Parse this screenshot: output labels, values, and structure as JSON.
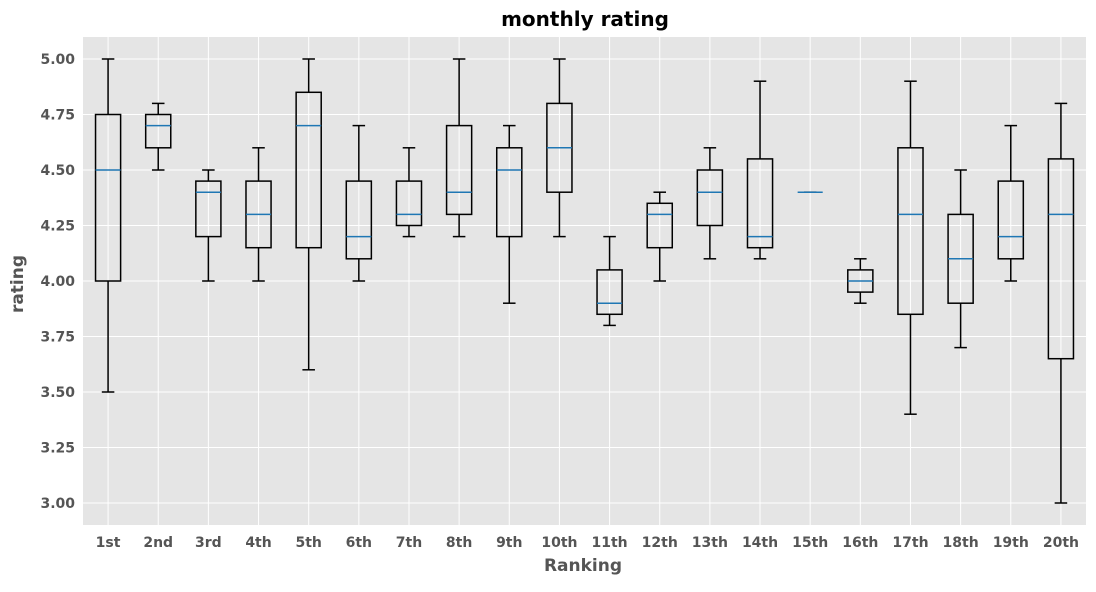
{
  "chart_data": {
    "type": "box",
    "title": "monthly rating",
    "xlabel": "Ranking",
    "ylabel": "rating",
    "ylim": [
      2.9,
      5.1
    ],
    "yticks": [
      "3.00",
      "3.25",
      "3.50",
      "3.75",
      "4.00",
      "4.25",
      "4.50",
      "4.75",
      "5.00"
    ],
    "grid": true,
    "categories": [
      "1st",
      "2nd",
      "3rd",
      "4th",
      "5th",
      "6th",
      "7th",
      "8th",
      "9th",
      "10th",
      "11th",
      "12th",
      "13th",
      "14th",
      "15th",
      "16th",
      "17th",
      "18th",
      "19th",
      "20th"
    ],
    "boxes": [
      {
        "whislo": 3.5,
        "q1": 4.0,
        "med": 4.5,
        "q3": 4.75,
        "whishi": 5.0
      },
      {
        "whislo": 4.5,
        "q1": 4.6,
        "med": 4.7,
        "q3": 4.75,
        "whishi": 4.8
      },
      {
        "whislo": 4.0,
        "q1": 4.2,
        "med": 4.4,
        "q3": 4.45,
        "whishi": 4.5
      },
      {
        "whislo": 4.0,
        "q1": 4.15,
        "med": 4.3,
        "q3": 4.45,
        "whishi": 4.6
      },
      {
        "whislo": 3.6,
        "q1": 4.15,
        "med": 4.7,
        "q3": 4.85,
        "whishi": 5.0
      },
      {
        "whislo": 4.0,
        "q1": 4.1,
        "med": 4.2,
        "q3": 4.45,
        "whishi": 4.7
      },
      {
        "whislo": 4.2,
        "q1": 4.25,
        "med": 4.3,
        "q3": 4.45,
        "whishi": 4.6
      },
      {
        "whislo": 4.2,
        "q1": 4.3,
        "med": 4.4,
        "q3": 4.7,
        "whishi": 5.0
      },
      {
        "whislo": 3.9,
        "q1": 4.2,
        "med": 4.5,
        "q3": 4.6,
        "whishi": 4.7
      },
      {
        "whislo": 4.2,
        "q1": 4.4,
        "med": 4.6,
        "q3": 4.8,
        "whishi": 5.0
      },
      {
        "whislo": 3.8,
        "q1": 3.85,
        "med": 3.9,
        "q3": 4.05,
        "whishi": 4.2
      },
      {
        "whislo": 4.0,
        "q1": 4.15,
        "med": 4.3,
        "q3": 4.35,
        "whishi": 4.4
      },
      {
        "whislo": 4.1,
        "q1": 4.25,
        "med": 4.4,
        "q3": 4.5,
        "whishi": 4.6
      },
      {
        "whislo": 4.1,
        "q1": 4.15,
        "med": 4.2,
        "q3": 4.55,
        "whishi": 4.9
      },
      {
        "whislo": 4.4,
        "q1": 4.4,
        "med": 4.4,
        "q3": 4.4,
        "whishi": 4.4
      },
      {
        "whislo": 3.9,
        "q1": 3.95,
        "med": 4.0,
        "q3": 4.05,
        "whishi": 4.1
      },
      {
        "whislo": 3.4,
        "q1": 3.85,
        "med": 4.3,
        "q3": 4.6,
        "whishi": 4.9
      },
      {
        "whislo": 3.7,
        "q1": 3.9,
        "med": 4.1,
        "q3": 4.3,
        "whishi": 4.5
      },
      {
        "whislo": 4.0,
        "q1": 4.1,
        "med": 4.2,
        "q3": 4.45,
        "whishi": 4.7
      },
      {
        "whislo": 3.0,
        "q1": 3.65,
        "med": 4.3,
        "q3": 4.55,
        "whishi": 4.8
      }
    ],
    "colors": {
      "plot_background": "#e5e5e5",
      "grid": "#ffffff",
      "box": "#000000",
      "median": "#1f77b4",
      "tick_text": "#555555",
      "title_text": "#000000"
    }
  }
}
